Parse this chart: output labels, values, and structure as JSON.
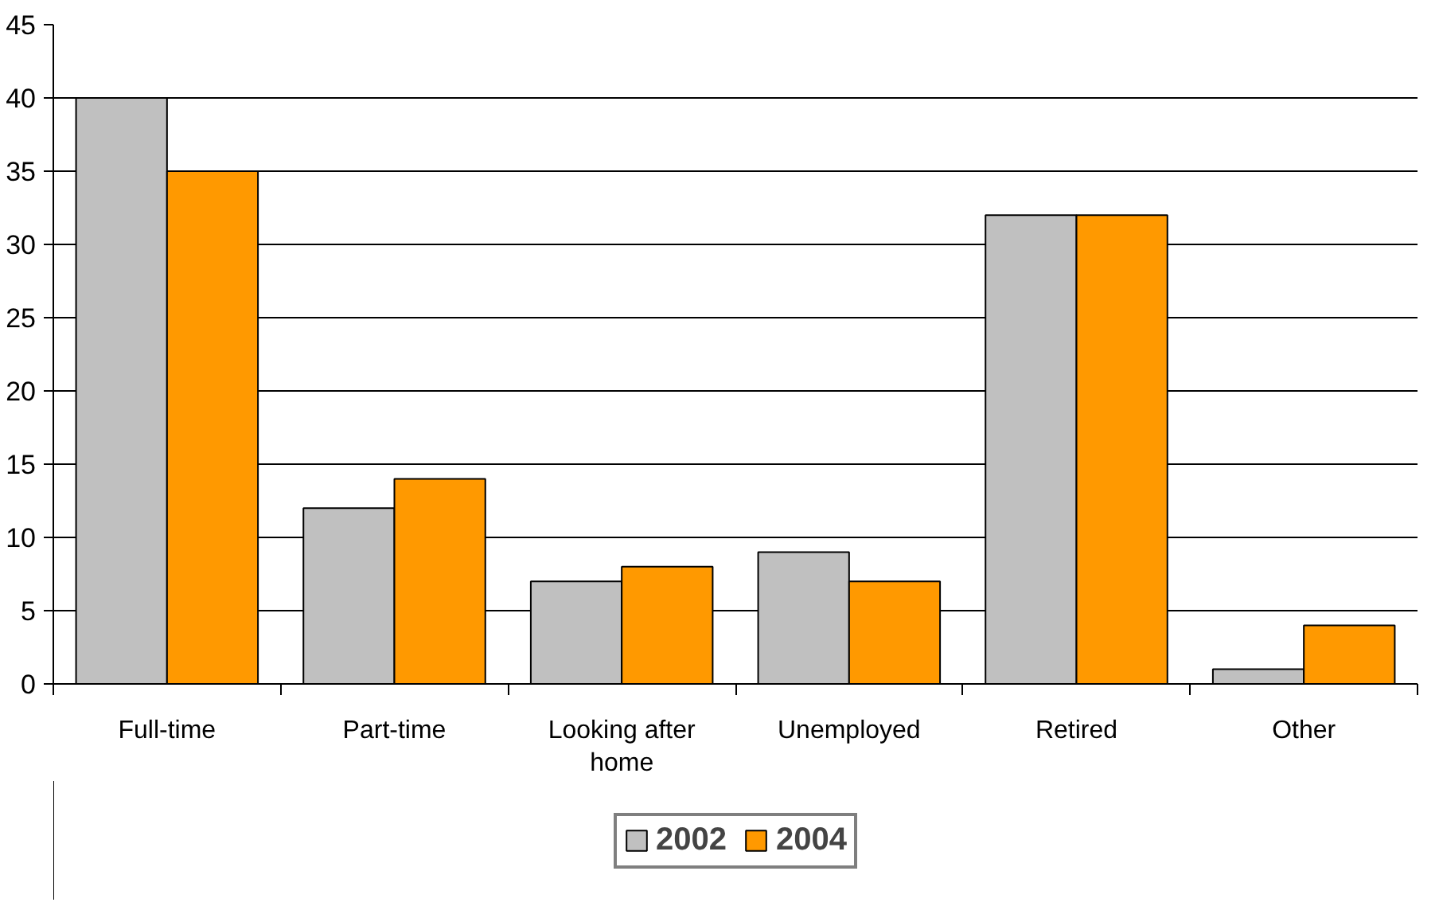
{
  "chart_data": {
    "type": "bar",
    "categories": [
      "Full-time",
      "Part-time",
      "Looking after home",
      "Unemployed",
      "Retired",
      "Other"
    ],
    "series": [
      {
        "name": "2002",
        "color": "#c0c0c0",
        "values": [
          40,
          12,
          7,
          9,
          32,
          1
        ]
      },
      {
        "name": "2004",
        "color": "#ff9900",
        "values": [
          35,
          14,
          8,
          7,
          32,
          4
        ]
      }
    ],
    "ylim": [
      0,
      45
    ],
    "yticks": [
      0,
      5,
      10,
      15,
      20,
      25,
      30,
      35,
      40,
      45
    ],
    "grid": "y",
    "legend": "bottom"
  }
}
